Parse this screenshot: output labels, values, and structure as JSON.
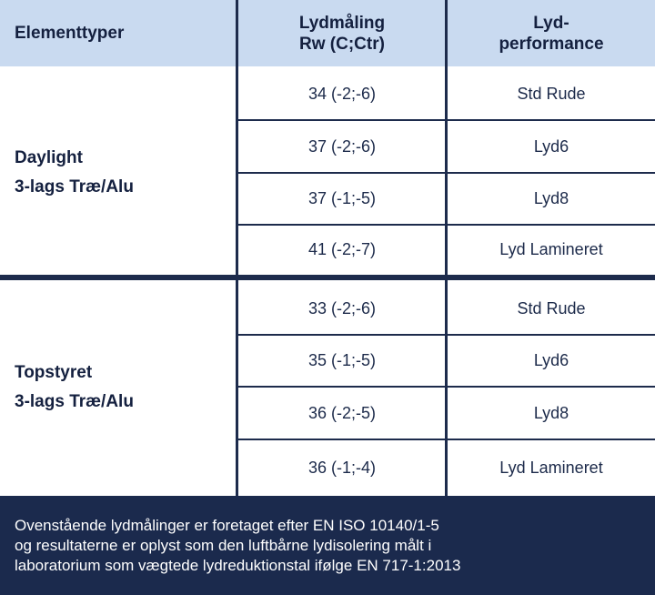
{
  "header": {
    "col_type": "Elementtyper",
    "col_measure_line1": "Lydmåling",
    "col_measure_line2": "Rw (C;Ctr)",
    "col_perf_line1": "Lyd-",
    "col_perf_line2": "performance"
  },
  "groups": [
    {
      "label_line1": "Daylight",
      "label_line2": "3-lags Træ/Alu",
      "rows": [
        {
          "measure": "34 (-2;-6)",
          "performance": "Std Rude"
        },
        {
          "measure": "37 (-2;-6)",
          "performance": "Lyd6"
        },
        {
          "measure": "37 (-1;-5)",
          "performance": "Lyd8"
        },
        {
          "measure": "41 (-2;-7)",
          "performance": "Lyd Lamineret"
        }
      ]
    },
    {
      "label_line1": "Topstyret",
      "label_line2": "3-lags Træ/Alu",
      "rows": [
        {
          "measure": "33 (-2;-6)",
          "performance": "Std Rude"
        },
        {
          "measure": "35 (-1;-5)",
          "performance": "Lyd6"
        },
        {
          "measure": "36 (-2;-5)",
          "performance": "Lyd8"
        },
        {
          "measure": "36 (-1;-4)",
          "performance": "Lyd Lamineret"
        }
      ]
    }
  ],
  "footer": {
    "line1": "Ovenstående lydmålinger er foretaget efter EN ISO 10140/1-5",
    "line2": "og resultaterne er oplyst som den luftbårne lydisolering målt i",
    "line3": "laboratorium som vægtede lydreduktionstal ifølge EN 717-1:2013"
  },
  "colors": {
    "header_bg": "#c9daf0",
    "rule": "#1d2b4c",
    "footer_bg": "#1b2a4d"
  }
}
